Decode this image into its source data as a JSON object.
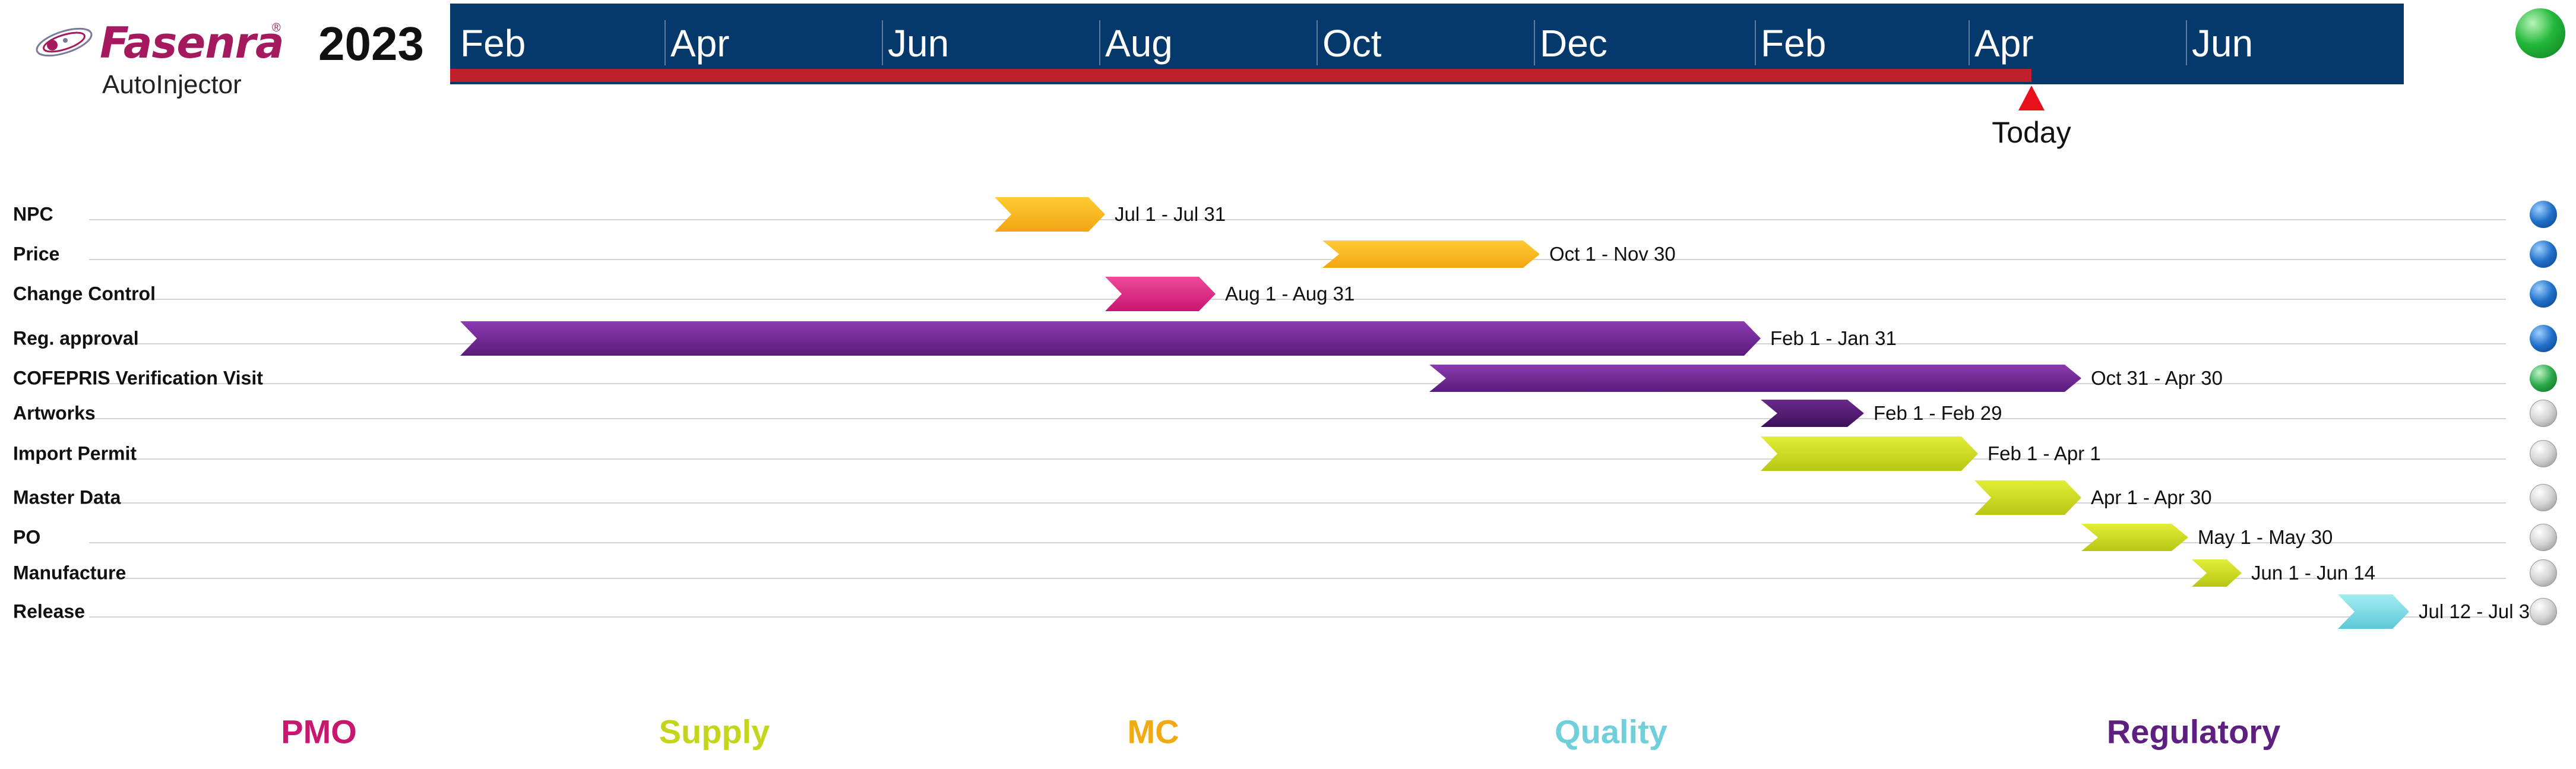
{
  "header": {
    "brand_name": "Fasenra",
    "brand_reg": "®",
    "brand_sub": "AutoInjector",
    "year": "2023",
    "today_label": "Today",
    "status_color": "#22b83a"
  },
  "chart_data": {
    "type": "gantt",
    "time_axis": {
      "start": "2023-02-01",
      "end": "2024-07-31",
      "tick_labels": [
        "Feb",
        "Apr",
        "Jun",
        "Aug",
        "Oct",
        "Dec",
        "Feb",
        "Apr",
        "Jun"
      ],
      "tick_dates": [
        "2023-02-01",
        "2023-04-01",
        "2023-06-01",
        "2023-08-01",
        "2023-10-01",
        "2023-12-01",
        "2024-02-01",
        "2024-04-01",
        "2024-06-01"
      ],
      "today": "2024-04-17"
    },
    "tasks": [
      {
        "name": "NPC",
        "start": "2023-07-01",
        "end": "2023-07-31",
        "date_label": "Jul 1 - Jul 31",
        "category": "MC",
        "status": "blue"
      },
      {
        "name": "Price",
        "start": "2023-10-01",
        "end": "2023-11-30",
        "date_label": "Oct 1 - Nov 30",
        "category": "MC",
        "status": "blue"
      },
      {
        "name": "Change Control",
        "start": "2023-08-01",
        "end": "2023-08-31",
        "date_label": "Aug 1 - Aug 31",
        "category": "PMO",
        "status": "blue"
      },
      {
        "name": "Reg. approval",
        "start": "2023-02-01",
        "end": "2024-01-31",
        "date_label": "Feb 1 - Jan 31",
        "category": "Regulatory",
        "status": "blue"
      },
      {
        "name": "COFEPRIS Verification Visit",
        "start": "2023-10-31",
        "end": "2024-04-30",
        "date_label": "Oct 31 - Apr 30",
        "category": "Regulatory",
        "status": "green"
      },
      {
        "name": "Artworks",
        "start": "2024-02-01",
        "end": "2024-02-29",
        "date_label": "Feb 1 - Feb 29",
        "category": "Regulatory",
        "status": "gray"
      },
      {
        "name": "Import Permit",
        "start": "2024-02-01",
        "end": "2024-04-01",
        "date_label": "Feb 1 - Apr 1",
        "category": "Supply",
        "status": "gray"
      },
      {
        "name": "Master Data",
        "start": "2024-04-01",
        "end": "2024-04-30",
        "date_label": "Apr 1 - Apr 30",
        "category": "Supply",
        "status": "gray"
      },
      {
        "name": "PO",
        "start": "2024-05-01",
        "end": "2024-05-30",
        "date_label": "May 1 - May 30",
        "category": "Supply",
        "status": "gray"
      },
      {
        "name": "Manufacture",
        "start": "2024-06-01",
        "end": "2024-06-14",
        "date_label": "Jun 1 - Jun 14",
        "category": "Supply",
        "status": "gray"
      },
      {
        "name": "Release",
        "start": "2024-07-12",
        "end": "2024-07-31",
        "date_label": "Jul 12 - Jul 31",
        "category": "Quality",
        "status": "gray"
      }
    ],
    "legend": [
      {
        "name": "PMO",
        "color": "#c8176f"
      },
      {
        "name": "Supply",
        "color": "#c4d61c"
      },
      {
        "name": "MC",
        "color": "#f3a912"
      },
      {
        "name": "Quality",
        "color": "#6fd0dc"
      },
      {
        "name": "Regulatory",
        "color": "#5e2080"
      }
    ],
    "category_colors": {
      "PMO": {
        "top": "#ee4a99",
        "bottom": "#c81571"
      },
      "Supply": {
        "top": "#e2ee37",
        "bottom": "#b7c714"
      },
      "MC": {
        "top": "#ffcc33",
        "bottom": "#f2a512"
      },
      "Quality": {
        "top": "#a5ecf3",
        "bottom": "#5cc8d6"
      },
      "Regulatory": {
        "top": "#8c3ab0",
        "bottom": "#5a1b7c"
      },
      "RegulatoryDark": {
        "top": "#6a2a8a",
        "bottom": "#3e0f5a"
      }
    }
  }
}
